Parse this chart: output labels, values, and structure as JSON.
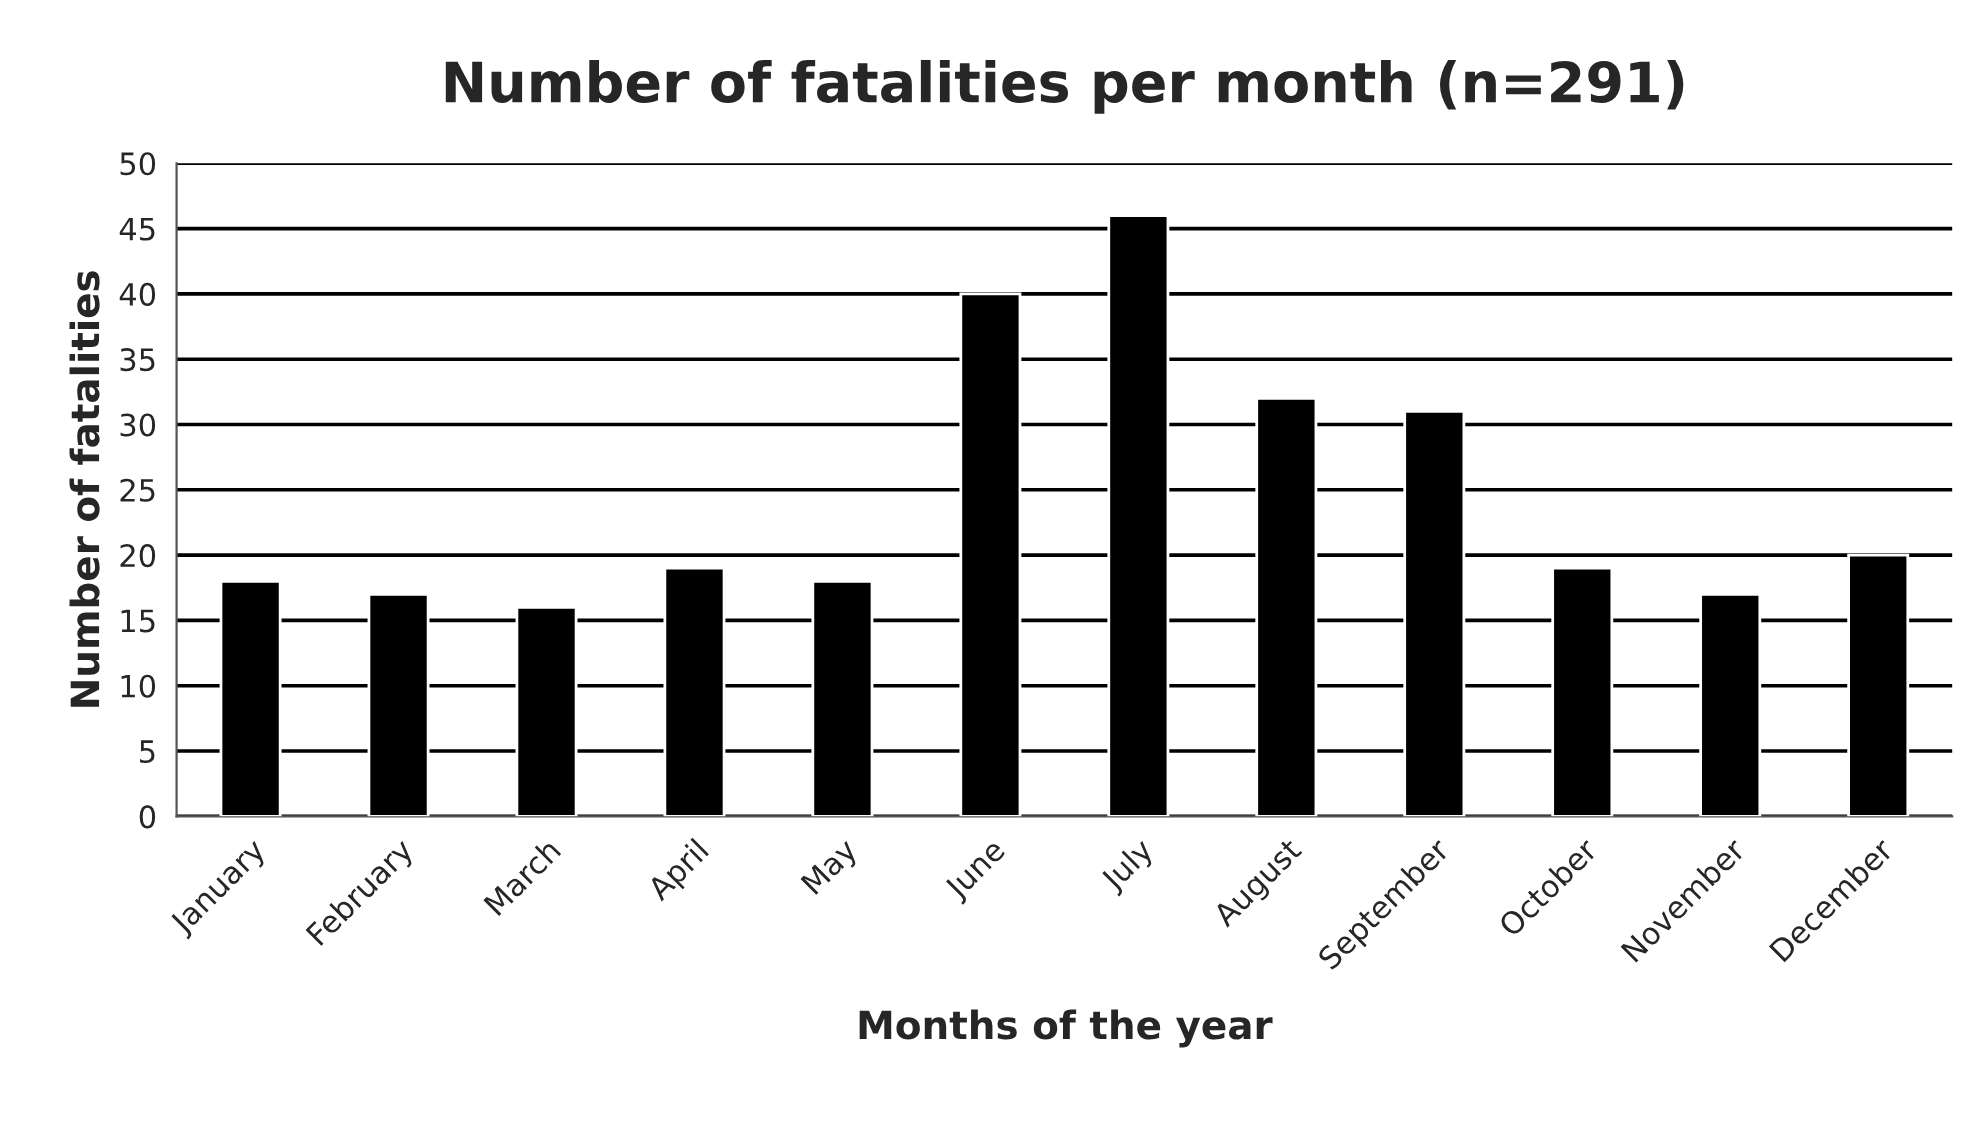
{
  "chart_data": {
    "type": "bar",
    "title": "Number of fatalities per month (n=291)",
    "xlabel": "Months of the year",
    "ylabel": "Number of fatalities",
    "categories": [
      "January",
      "February",
      "March",
      "April",
      "May",
      "June",
      "July",
      "August",
      "September",
      "October",
      "November",
      "December"
    ],
    "values": [
      18,
      17,
      16,
      19,
      18,
      40,
      46,
      32,
      31,
      19,
      17,
      20
    ],
    "color": "#000000",
    "ylim": [
      0,
      50
    ],
    "yticks": [
      0,
      5,
      10,
      15,
      20,
      25,
      30,
      35,
      40,
      45,
      50
    ],
    "grid": "y",
    "legend": false
  }
}
